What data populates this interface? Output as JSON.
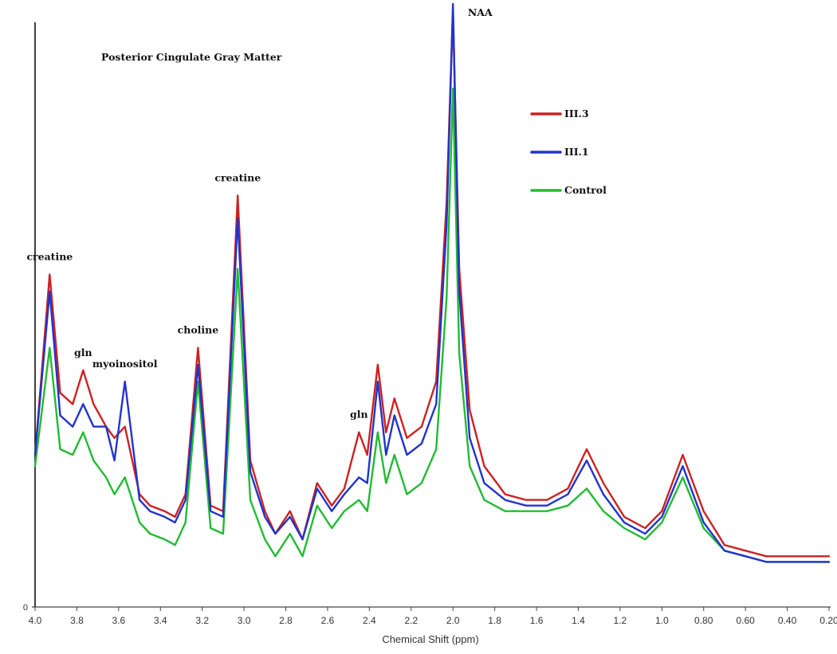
{
  "chart_data": {
    "type": "line",
    "title": "Posterior Cingulate Gray Matter",
    "xlabel": "Chemical Shift (ppm)",
    "ylabel": "",
    "xlim": [
      4.0,
      0.2
    ],
    "x_reversed": true,
    "y_zero_label": "0",
    "grid": false,
    "legend_position": "right",
    "x_ticks": [
      "4.0",
      "3.8",
      "3.6",
      "3.4",
      "3.2",
      "3.0",
      "2.8",
      "2.6",
      "2.4",
      "2.2",
      "2.0",
      "1.8",
      "1.6",
      "1.4",
      "1.2",
      "1.0",
      "0.80",
      "0.60",
      "0.40",
      "0.20"
    ],
    "annotations": [
      {
        "label": "creatine",
        "x": 3.93
      },
      {
        "label": "gln",
        "x": 3.77
      },
      {
        "label": "myoinositol",
        "x": 3.57
      },
      {
        "label": "choline",
        "x": 3.22
      },
      {
        "label": "creatine",
        "x": 3.03
      },
      {
        "label": "gln",
        "x": 2.45
      },
      {
        "label": "NAA",
        "x": 1.99
      }
    ],
    "series": [
      {
        "name": "III.3",
        "color": "#cc2222",
        "points": [
          [
            4.0,
            0.27
          ],
          [
            3.93,
            0.59
          ],
          [
            3.88,
            0.38
          ],
          [
            3.82,
            0.36
          ],
          [
            3.77,
            0.42
          ],
          [
            3.72,
            0.36
          ],
          [
            3.66,
            0.32
          ],
          [
            3.62,
            0.3
          ],
          [
            3.57,
            0.32
          ],
          [
            3.5,
            0.2
          ],
          [
            3.45,
            0.18
          ],
          [
            3.38,
            0.17
          ],
          [
            3.33,
            0.16
          ],
          [
            3.28,
            0.2
          ],
          [
            3.22,
            0.46
          ],
          [
            3.16,
            0.18
          ],
          [
            3.1,
            0.17
          ],
          [
            3.03,
            0.73
          ],
          [
            2.97,
            0.26
          ],
          [
            2.9,
            0.17
          ],
          [
            2.85,
            0.13
          ],
          [
            2.78,
            0.17
          ],
          [
            2.72,
            0.12
          ],
          [
            2.65,
            0.22
          ],
          [
            2.58,
            0.18
          ],
          [
            2.52,
            0.21
          ],
          [
            2.45,
            0.31
          ],
          [
            2.41,
            0.27
          ],
          [
            2.36,
            0.43
          ],
          [
            2.32,
            0.31
          ],
          [
            2.28,
            0.37
          ],
          [
            2.22,
            0.3
          ],
          [
            2.15,
            0.32
          ],
          [
            2.08,
            0.4
          ],
          [
            2.03,
            0.72
          ],
          [
            2.0,
            1.06
          ],
          [
            1.97,
            0.6
          ],
          [
            1.92,
            0.35
          ],
          [
            1.85,
            0.25
          ],
          [
            1.75,
            0.2
          ],
          [
            1.65,
            0.19
          ],
          [
            1.55,
            0.19
          ],
          [
            1.45,
            0.21
          ],
          [
            1.36,
            0.28
          ],
          [
            1.28,
            0.22
          ],
          [
            1.18,
            0.16
          ],
          [
            1.08,
            0.14
          ],
          [
            1.0,
            0.17
          ],
          [
            0.9,
            0.27
          ],
          [
            0.8,
            0.17
          ],
          [
            0.7,
            0.11
          ],
          [
            0.6,
            0.1
          ],
          [
            0.5,
            0.09
          ],
          [
            0.4,
            0.09
          ],
          [
            0.3,
            0.09
          ],
          [
            0.2,
            0.09
          ]
        ]
      },
      {
        "name": "III.1",
        "color": "#2233cc",
        "points": [
          [
            4.0,
            0.27
          ],
          [
            3.93,
            0.56
          ],
          [
            3.88,
            0.34
          ],
          [
            3.82,
            0.32
          ],
          [
            3.77,
            0.36
          ],
          [
            3.72,
            0.32
          ],
          [
            3.66,
            0.32
          ],
          [
            3.62,
            0.26
          ],
          [
            3.57,
            0.4
          ],
          [
            3.5,
            0.19
          ],
          [
            3.45,
            0.17
          ],
          [
            3.38,
            0.16
          ],
          [
            3.33,
            0.15
          ],
          [
            3.28,
            0.19
          ],
          [
            3.22,
            0.43
          ],
          [
            3.16,
            0.17
          ],
          [
            3.1,
            0.16
          ],
          [
            3.03,
            0.69
          ],
          [
            2.97,
            0.24
          ],
          [
            2.9,
            0.16
          ],
          [
            2.85,
            0.13
          ],
          [
            2.78,
            0.16
          ],
          [
            2.72,
            0.12
          ],
          [
            2.65,
            0.21
          ],
          [
            2.58,
            0.17
          ],
          [
            2.52,
            0.2
          ],
          [
            2.45,
            0.23
          ],
          [
            2.41,
            0.22
          ],
          [
            2.36,
            0.4
          ],
          [
            2.32,
            0.27
          ],
          [
            2.28,
            0.34
          ],
          [
            2.22,
            0.27
          ],
          [
            2.15,
            0.29
          ],
          [
            2.08,
            0.36
          ],
          [
            2.03,
            0.68
          ],
          [
            2.0,
            1.07
          ],
          [
            1.97,
            0.56
          ],
          [
            1.92,
            0.3
          ],
          [
            1.85,
            0.22
          ],
          [
            1.75,
            0.19
          ],
          [
            1.65,
            0.18
          ],
          [
            1.55,
            0.18
          ],
          [
            1.45,
            0.2
          ],
          [
            1.36,
            0.26
          ],
          [
            1.28,
            0.2
          ],
          [
            1.18,
            0.15
          ],
          [
            1.08,
            0.13
          ],
          [
            1.0,
            0.16
          ],
          [
            0.9,
            0.25
          ],
          [
            0.8,
            0.15
          ],
          [
            0.7,
            0.1
          ],
          [
            0.6,
            0.09
          ],
          [
            0.5,
            0.08
          ],
          [
            0.4,
            0.08
          ],
          [
            0.3,
            0.08
          ],
          [
            0.2,
            0.08
          ]
        ]
      },
      {
        "name": "Control",
        "color": "#22bb33",
        "points": [
          [
            4.0,
            0.25
          ],
          [
            3.93,
            0.46
          ],
          [
            3.88,
            0.28
          ],
          [
            3.82,
            0.27
          ],
          [
            3.77,
            0.31
          ],
          [
            3.72,
            0.26
          ],
          [
            3.66,
            0.23
          ],
          [
            3.62,
            0.2
          ],
          [
            3.57,
            0.23
          ],
          [
            3.5,
            0.15
          ],
          [
            3.45,
            0.13
          ],
          [
            3.38,
            0.12
          ],
          [
            3.33,
            0.11
          ],
          [
            3.28,
            0.15
          ],
          [
            3.22,
            0.4
          ],
          [
            3.16,
            0.14
          ],
          [
            3.1,
            0.13
          ],
          [
            3.03,
            0.6
          ],
          [
            2.97,
            0.19
          ],
          [
            2.9,
            0.12
          ],
          [
            2.85,
            0.09
          ],
          [
            2.78,
            0.13
          ],
          [
            2.72,
            0.09
          ],
          [
            2.65,
            0.18
          ],
          [
            2.58,
            0.14
          ],
          [
            2.52,
            0.17
          ],
          [
            2.45,
            0.19
          ],
          [
            2.41,
            0.17
          ],
          [
            2.36,
            0.31
          ],
          [
            2.32,
            0.22
          ],
          [
            2.28,
            0.27
          ],
          [
            2.22,
            0.2
          ],
          [
            2.15,
            0.22
          ],
          [
            2.08,
            0.28
          ],
          [
            2.03,
            0.55
          ],
          [
            2.0,
            0.92
          ],
          [
            1.97,
            0.45
          ],
          [
            1.92,
            0.25
          ],
          [
            1.85,
            0.19
          ],
          [
            1.75,
            0.17
          ],
          [
            1.65,
            0.17
          ],
          [
            1.55,
            0.17
          ],
          [
            1.45,
            0.18
          ],
          [
            1.36,
            0.21
          ],
          [
            1.28,
            0.17
          ],
          [
            1.18,
            0.14
          ],
          [
            1.08,
            0.12
          ],
          [
            1.0,
            0.15
          ],
          [
            0.9,
            0.23
          ],
          [
            0.8,
            0.14
          ],
          [
            0.7,
            0.1
          ],
          [
            0.6,
            0.09
          ],
          [
            0.5,
            0.08
          ],
          [
            0.4,
            0.08
          ],
          [
            0.3,
            0.08
          ],
          [
            0.2,
            0.08
          ]
        ]
      }
    ]
  }
}
